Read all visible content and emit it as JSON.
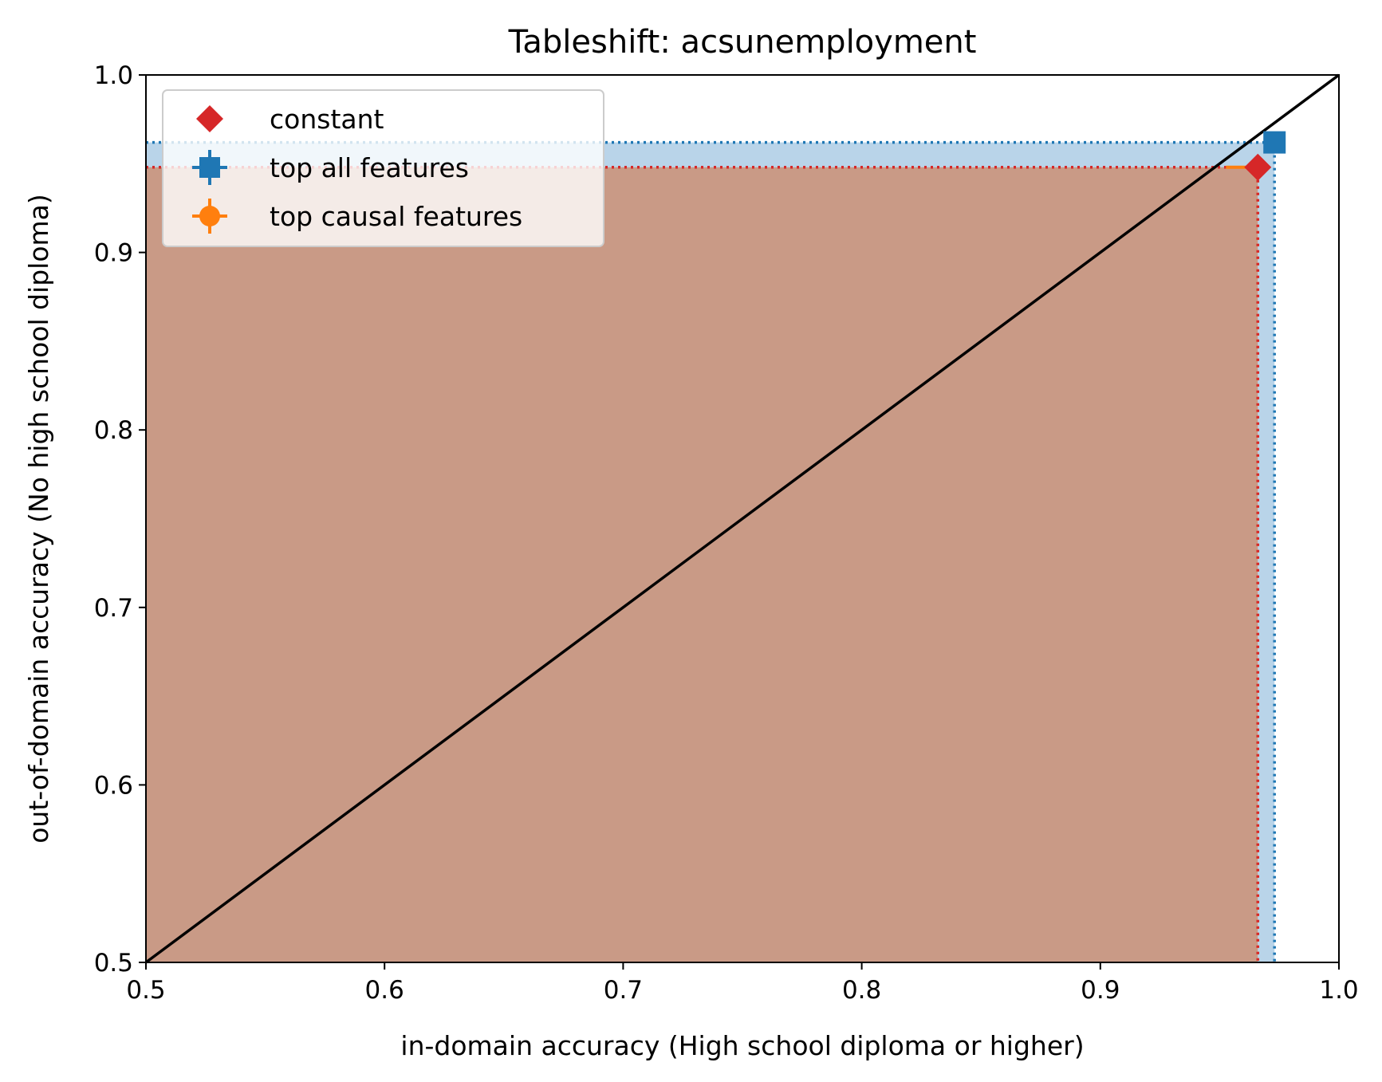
{
  "chart_data": {
    "type": "scatter",
    "title": "Tableshift: acsunemployment",
    "xlabel": "in-domain accuracy (High school diploma or higher)",
    "ylabel": "out-of-domain accuracy (No high school diploma)",
    "xlim": [
      0.5,
      1.0
    ],
    "ylim": [
      0.5,
      1.0
    ],
    "xticks": [
      "0.5",
      "0.6",
      "0.7",
      "0.8",
      "0.9",
      "1.0"
    ],
    "yticks": [
      "0.5",
      "0.6",
      "0.7",
      "0.8",
      "0.9",
      "1.0"
    ],
    "grid": false,
    "legend_position": "top-left",
    "diagonal": {
      "from": [
        0.5,
        0.5
      ],
      "to": [
        1.0,
        1.0
      ],
      "color": "#000000"
    },
    "series": [
      {
        "name": "constant",
        "marker": "diamond",
        "color": "#d62728",
        "x": 0.966,
        "y": 0.948,
        "region_fill": "#c99a86"
      },
      {
        "name": "top all features",
        "marker": "plus-filled",
        "color": "#1f77b4",
        "x": 0.973,
        "y": 0.962,
        "region_fill": "#b9d4e9"
      },
      {
        "name": "top causal features",
        "marker": "circle",
        "color": "#ff7f0e",
        "x": 0.966,
        "y": 0.948
      }
    ]
  }
}
